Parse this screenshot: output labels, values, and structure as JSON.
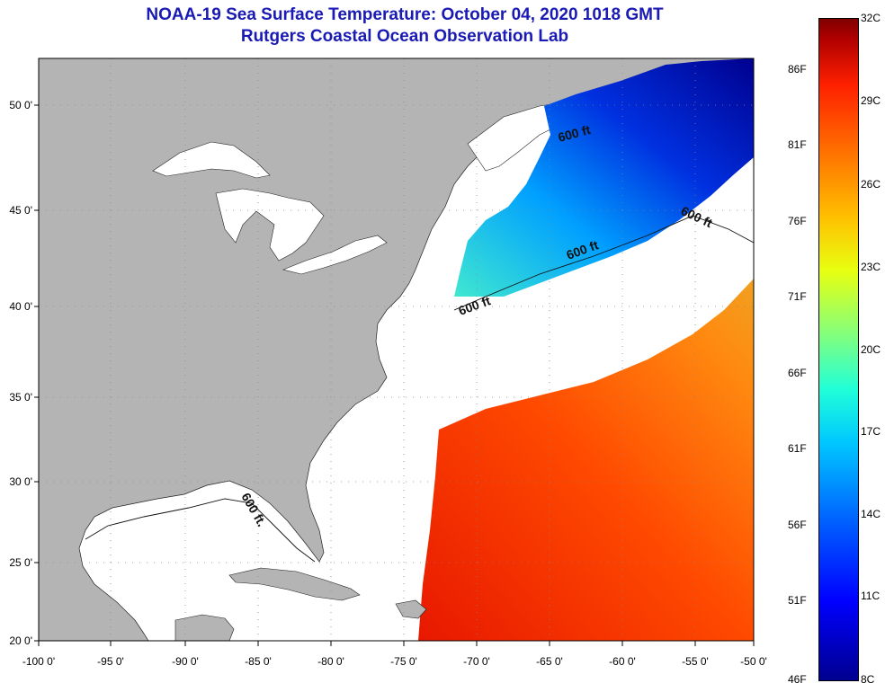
{
  "header": {
    "title_line1": "NOAA-19 Sea Surface Temperature:  October 04, 2020 1018 GMT",
    "title_line2": "Rutgers Coastal Ocean Observation Lab"
  },
  "axes": {
    "longitude_ticks": [
      "-100 0'",
      "-95 0'",
      "-90 0'",
      "-85 0'",
      "-80 0'",
      "-75 0'",
      "-70 0'",
      "-65 0'",
      "-60 0'",
      "-55 0'",
      "-50 0'"
    ],
    "latitude_ticks": [
      "50 0'",
      "45 0'",
      "40 0'",
      "35 0'",
      "30 0'",
      "25 0'",
      "20 0'"
    ]
  },
  "contour_labels": [
    "600 ft",
    "600 ft",
    "600 ft",
    "600 ft",
    "600 ft."
  ],
  "colorbar": {
    "fahrenheit_labels": [
      "86F",
      "81F",
      "76F",
      "71F",
      "66F",
      "61F",
      "56F",
      "51F",
      "46F"
    ],
    "celsius_labels": [
      "32C",
      "29C",
      "26C",
      "23C",
      "20C",
      "17C",
      "14C",
      "11C",
      "8C"
    ]
  },
  "colors": {
    "land": "#b4b4b4",
    "no_data": "#ffffff",
    "title": "#1a1ab4",
    "cold": "#00008f",
    "warm": "#ff3000"
  }
}
